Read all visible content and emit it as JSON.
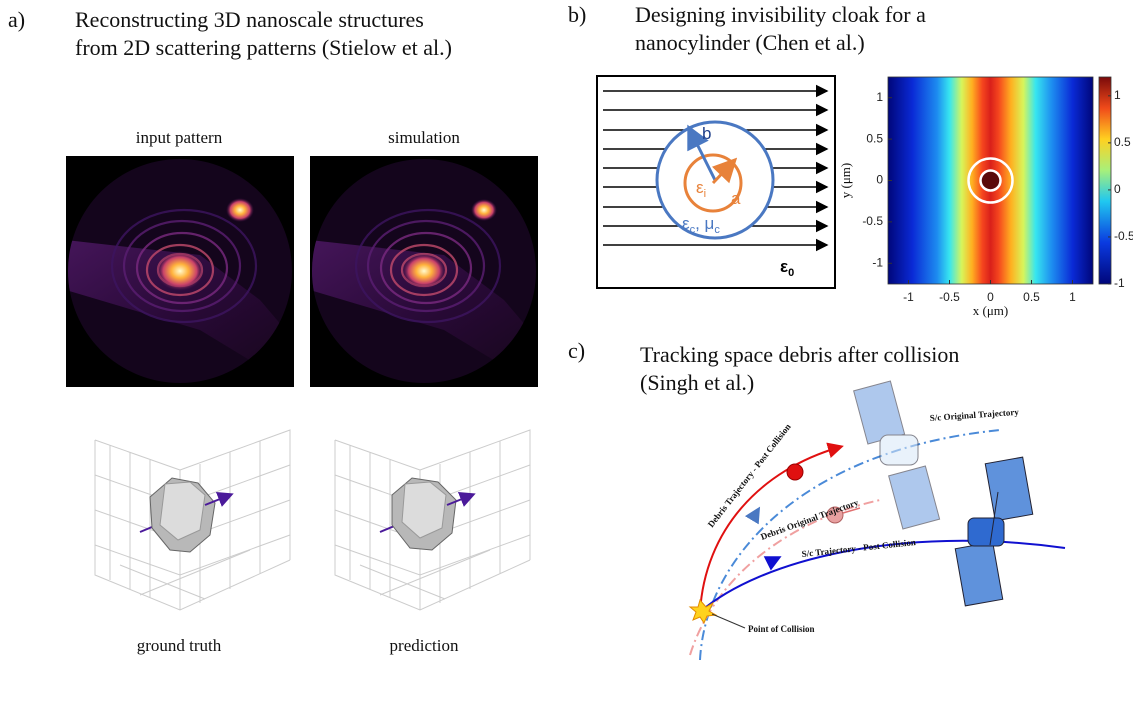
{
  "panel_a": {
    "letter": "a)",
    "title": [
      "Reconstructing 3D nanoscale structures",
      "from 2D scattering patterns (Stielow et al.)"
    ],
    "image_labels": [
      "input pattern",
      "simulation"
    ],
    "shape_labels": [
      "ground truth",
      "prediction"
    ]
  },
  "panel_b": {
    "letter": "b)",
    "title": [
      "Designing invisibility cloak for a",
      "nanocylinder (Chen et al.)"
    ],
    "diagram": {
      "radius_outer": "b",
      "radius_inner": "a",
      "inner_medium": {
        "symbol": "ε",
        "subscript": "i"
      },
      "cloak_medium": [
        {
          "symbol": "ε",
          "subscript": "c"
        },
        {
          "symbol": ", μ",
          "subscript": "c"
        }
      ],
      "outer_medium": {
        "symbol": "ε",
        "subscript": "0"
      }
    }
  },
  "chart_data": {
    "type": "heatmap",
    "x_label": "x (μm)",
    "y_label": "y (μm)",
    "xlim": [
      -1.25,
      1.25
    ],
    "ylim": [
      -1.25,
      1.25
    ],
    "xticks": [
      -1,
      -0.5,
      0,
      0.5,
      1
    ],
    "yticks": [
      -1,
      -0.5,
      0,
      0.5,
      1
    ],
    "colorbar": {
      "lim": [
        -1,
        1.2
      ],
      "ticks": [
        -1,
        -0.5,
        0,
        0.5,
        1
      ]
    }
  },
  "panel_c": {
    "letter": "c)",
    "title": [
      "Tracking space debris after collision",
      "(Singh et al.)"
    ],
    "labels": {
      "sc_original": "S/c Original Trajectory",
      "debris_post": "Debris Trajectory - Post Collision",
      "debris_original": "Debris Original Trajectory",
      "sc_post": "S/c Trajectory - Post Collision",
      "collision": "Point of Collision"
    }
  }
}
